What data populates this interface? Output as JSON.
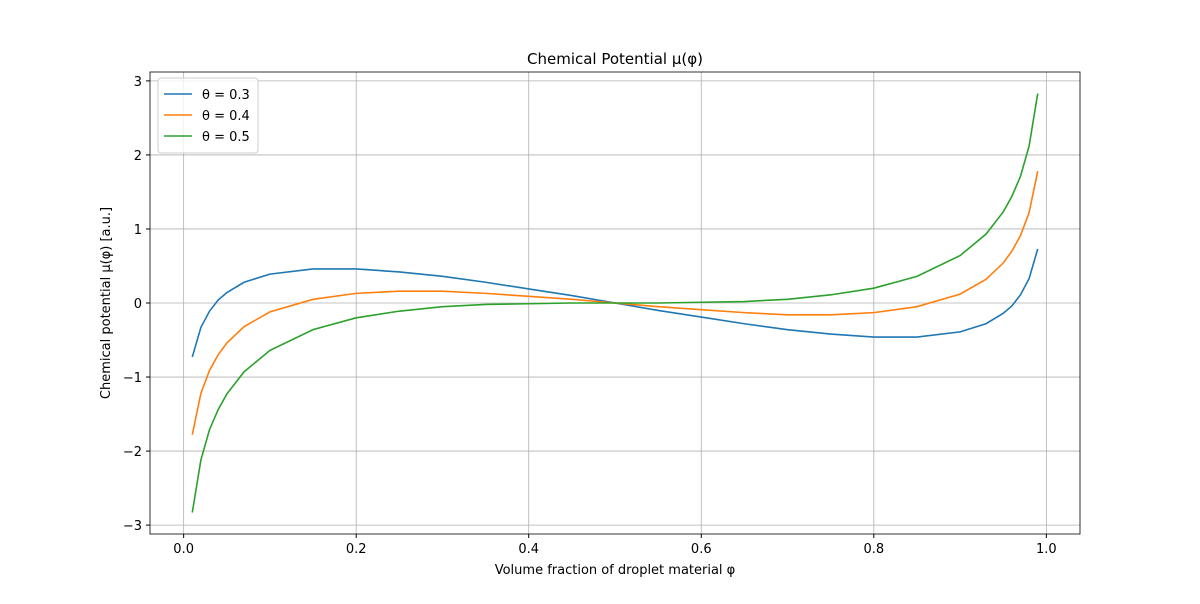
{
  "chart_data": {
    "type": "line",
    "title": "Chemical Potential μ(φ)",
    "x_label": "Volume fraction of droplet material φ",
    "y_label": "Chemical potential μ(φ) [a.u.]",
    "x": [
      0.01,
      0.02,
      0.03,
      0.04,
      0.05,
      0.07,
      0.1,
      0.15,
      0.2,
      0.25,
      0.3,
      0.35,
      0.4,
      0.45,
      0.5,
      0.55,
      0.6,
      0.65,
      0.7,
      0.75,
      0.8,
      0.85,
      0.9,
      0.93,
      0.95,
      0.96,
      0.97,
      0.98,
      0.99
    ],
    "series": [
      {
        "name": "θ = 0.3",
        "color": "#1f77b4",
        "values": [
          -0.73,
          -0.33,
          -0.11,
          0.04,
          0.14,
          0.28,
          0.39,
          0.46,
          0.46,
          0.42,
          0.36,
          0.28,
          0.19,
          0.1,
          0,
          -0.1,
          -0.19,
          -0.28,
          -0.36,
          -0.42,
          -0.46,
          -0.46,
          -0.39,
          -0.28,
          -0.14,
          -0.04,
          0.11,
          0.33,
          0.73
        ]
      },
      {
        "name": "θ = 0.4",
        "color": "#ff7f0e",
        "values": [
          -1.78,
          -1.22,
          -0.91,
          -0.7,
          -0.54,
          -0.32,
          -0.12,
          0.05,
          0.13,
          0.16,
          0.16,
          0.13,
          0.09,
          0.05,
          0,
          -0.05,
          -0.09,
          -0.13,
          -0.16,
          -0.16,
          -0.13,
          -0.05,
          0.12,
          0.32,
          0.54,
          0.7,
          0.91,
          1.22,
          1.78
        ]
      },
      {
        "name": "θ = 0.5",
        "color": "#2ca02c",
        "values": [
          -2.83,
          -2.12,
          -1.71,
          -1.44,
          -1.23,
          -0.93,
          -0.64,
          -0.36,
          -0.2,
          -0.11,
          -0.05,
          -0.02,
          -0.01,
          0.0,
          0,
          0.0,
          0.01,
          0.02,
          0.05,
          0.11,
          0.2,
          0.36,
          0.64,
          0.93,
          1.23,
          1.44,
          1.71,
          2.12,
          2.83
        ]
      }
    ],
    "xlim": [
      -0.039,
      1.039
    ],
    "ylim": [
      -3.12,
      3.12
    ],
    "xticks": [
      {
        "value": 0,
        "label": "0.0"
      },
      0.2,
      0.4,
      0.6,
      0.8,
      {
        "value": 1,
        "label": "1.0"
      }
    ],
    "yticks": [
      {
        "value": -3,
        "label": "−3"
      },
      {
        "value": -2,
        "label": "−2"
      },
      {
        "value": -1,
        "label": "−1"
      },
      0,
      1,
      2,
      3
    ],
    "grid": true,
    "legend": "upper left"
  }
}
